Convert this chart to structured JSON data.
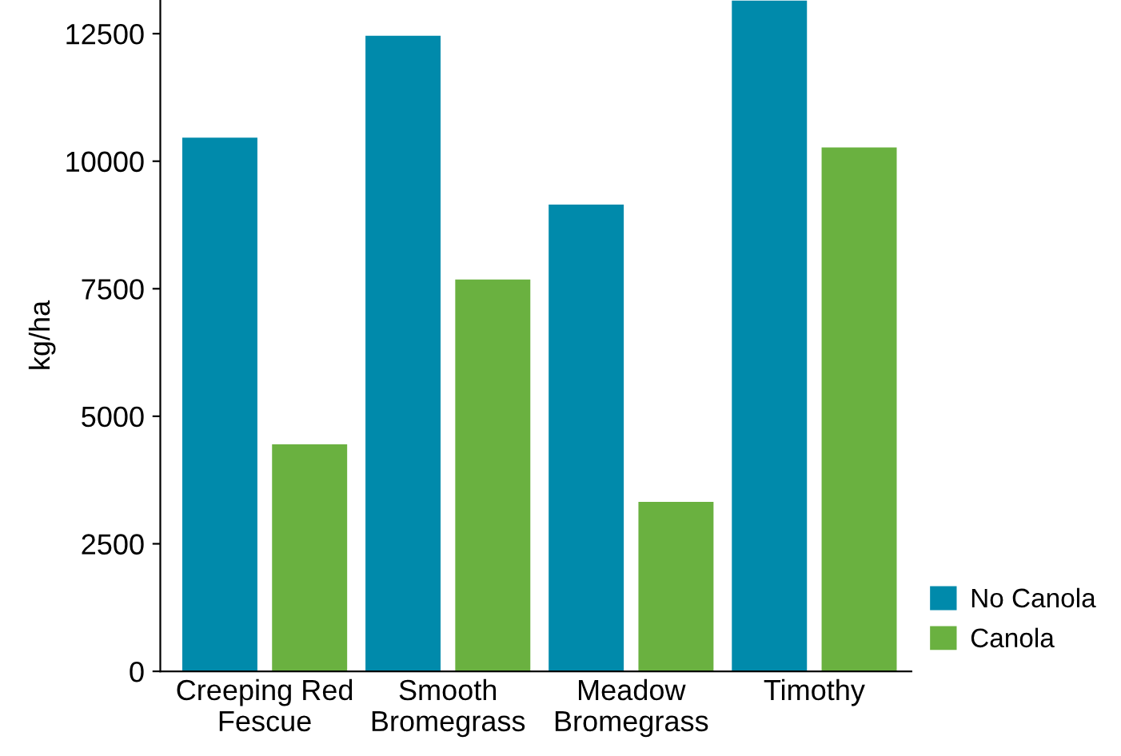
{
  "chart_data": {
    "type": "bar",
    "ylabel": "kg/ha",
    "categories": [
      "Creeping Red\nFescue",
      "Smooth\nBromegrass",
      "Meadow\nBromegrass",
      "Timothy"
    ],
    "series": [
      {
        "name": "No Canola",
        "color": "#008aab",
        "values": [
          10460,
          12460,
          9150,
          13150
        ]
      },
      {
        "name": "Canola",
        "color": "#6ab140",
        "values": [
          4450,
          7680,
          3320,
          10270
        ]
      }
    ],
    "ylim": [
      0,
      13160
    ],
    "yticks": [
      0,
      2500,
      5000,
      7500,
      10000,
      12500
    ],
    "grid": false,
    "legend": "bottom right"
  }
}
